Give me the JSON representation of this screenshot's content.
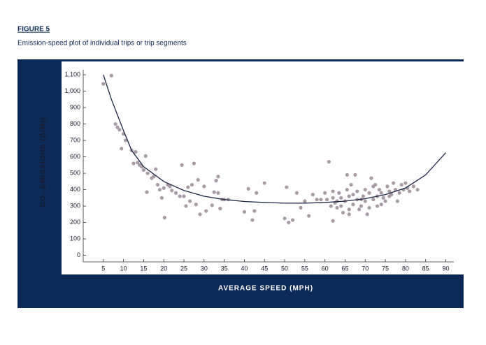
{
  "chart_data": {
    "type": "scatter",
    "title": "FIGURE 5",
    "subtitle": "Emission-speed plot of individual trips or trip segments",
    "x_label": "AVERAGE SPEED (MPH)",
    "y_label": "CO₂ EMISSIONS (G/MI)",
    "xlim": [
      0,
      92
    ],
    "ylim": [
      -40,
      1130
    ],
    "xticks": [
      5,
      10,
      15,
      20,
      25,
      30,
      35,
      40,
      45,
      50,
      55,
      60,
      65,
      70,
      75,
      80,
      85,
      90
    ],
    "yticks": [
      0,
      100,
      200,
      300,
      400,
      500,
      600,
      700,
      800,
      900,
      {
        "value": 1000,
        "label": "1,000"
      },
      {
        "value": 1100,
        "label": "1,100"
      }
    ],
    "series": [
      {
        "type": "scatter",
        "color": "#a99ba6",
        "x": [
          5,
          7,
          8,
          8.5,
          9,
          9.5,
          10,
          10.5,
          12,
          12.5,
          13,
          13.5,
          14,
          14.5,
          15,
          15.5,
          15.8,
          16,
          17,
          17.5,
          18,
          18.5,
          19,
          19.5,
          20,
          20.2,
          21,
          21.5,
          22,
          23,
          24,
          24.5,
          25,
          25.5,
          26,
          26.5,
          27,
          27.5,
          28,
          28.5,
          29,
          30,
          30.5,
          32,
          32.5,
          33,
          33.5,
          33.5,
          34,
          34.5,
          35,
          36,
          40,
          41,
          42,
          42.5,
          43,
          45,
          50,
          50.5,
          51,
          52,
          53,
          54,
          55,
          56,
          57,
          58,
          59,
          60,
          60.5,
          61,
          61.5,
          62,
          62,
          62.5,
          63,
          63.5,
          64,
          64.5,
          65,
          65.5,
          65.5,
          66,
          66,
          66.5,
          67,
          67,
          67.5,
          68,
          68.5,
          69,
          69.5,
          70,
          70,
          70.5,
          71,
          71,
          71.5,
          72,
          72.5,
          73,
          73,
          73.5,
          74,
          74.5,
          75,
          75.5,
          76,
          76.5,
          77,
          77.5,
          78,
          78.5,
          79,
          79.5,
          80,
          80.5,
          81,
          82,
          83,
          64,
          66,
          68,
          72,
          74,
          76,
          69,
          62,
          63
        ],
        "values": [
          1045,
          1095,
          800,
          780,
          765,
          650,
          740,
          700,
          640,
          560,
          630,
          565,
          550,
          540,
          520,
          605,
          385,
          500,
          470,
          480,
          525,
          430,
          400,
          350,
          410,
          230,
          430,
          420,
          395,
          380,
          360,
          550,
          360,
          300,
          415,
          330,
          430,
          560,
          310,
          460,
          250,
          420,
          270,
          305,
          385,
          455,
          480,
          380,
          285,
          340,
          340,
          340,
          265,
          405,
          215,
          270,
          380,
          440,
          225,
          415,
          200,
          215,
          380,
          290,
          330,
          240,
          370,
          340,
          340,
          380,
          340,
          570,
          300,
          210,
          350,
          320,
          290,
          380,
          300,
          260,
          330,
          490,
          400,
          250,
          280,
          430,
          310,
          370,
          490,
          340,
          280,
          300,
          360,
          400,
          330,
          250,
          380,
          290,
          470,
          340,
          430,
          360,
          300,
          400,
          380,
          350,
          330,
          420,
          390,
          370,
          440,
          400,
          330,
          380,
          430,
          400,
          440,
          410,
          390,
          420,
          400,
          350,
          360,
          390,
          420,
          310,
          360,
          340,
          390,
          330
        ]
      },
      {
        "type": "line",
        "color": "#1c2544",
        "x": [
          5,
          7,
          10,
          12,
          15,
          20,
          25,
          30,
          35,
          40,
          45,
          50,
          55,
          60,
          65,
          70,
          75,
          80,
          85,
          90
        ],
        "values": [
          1100,
          950,
          760,
          640,
          540,
          450,
          395,
          360,
          340,
          328,
          322,
          318,
          318,
          322,
          330,
          345,
          370,
          410,
          490,
          625
        ]
      }
    ]
  }
}
